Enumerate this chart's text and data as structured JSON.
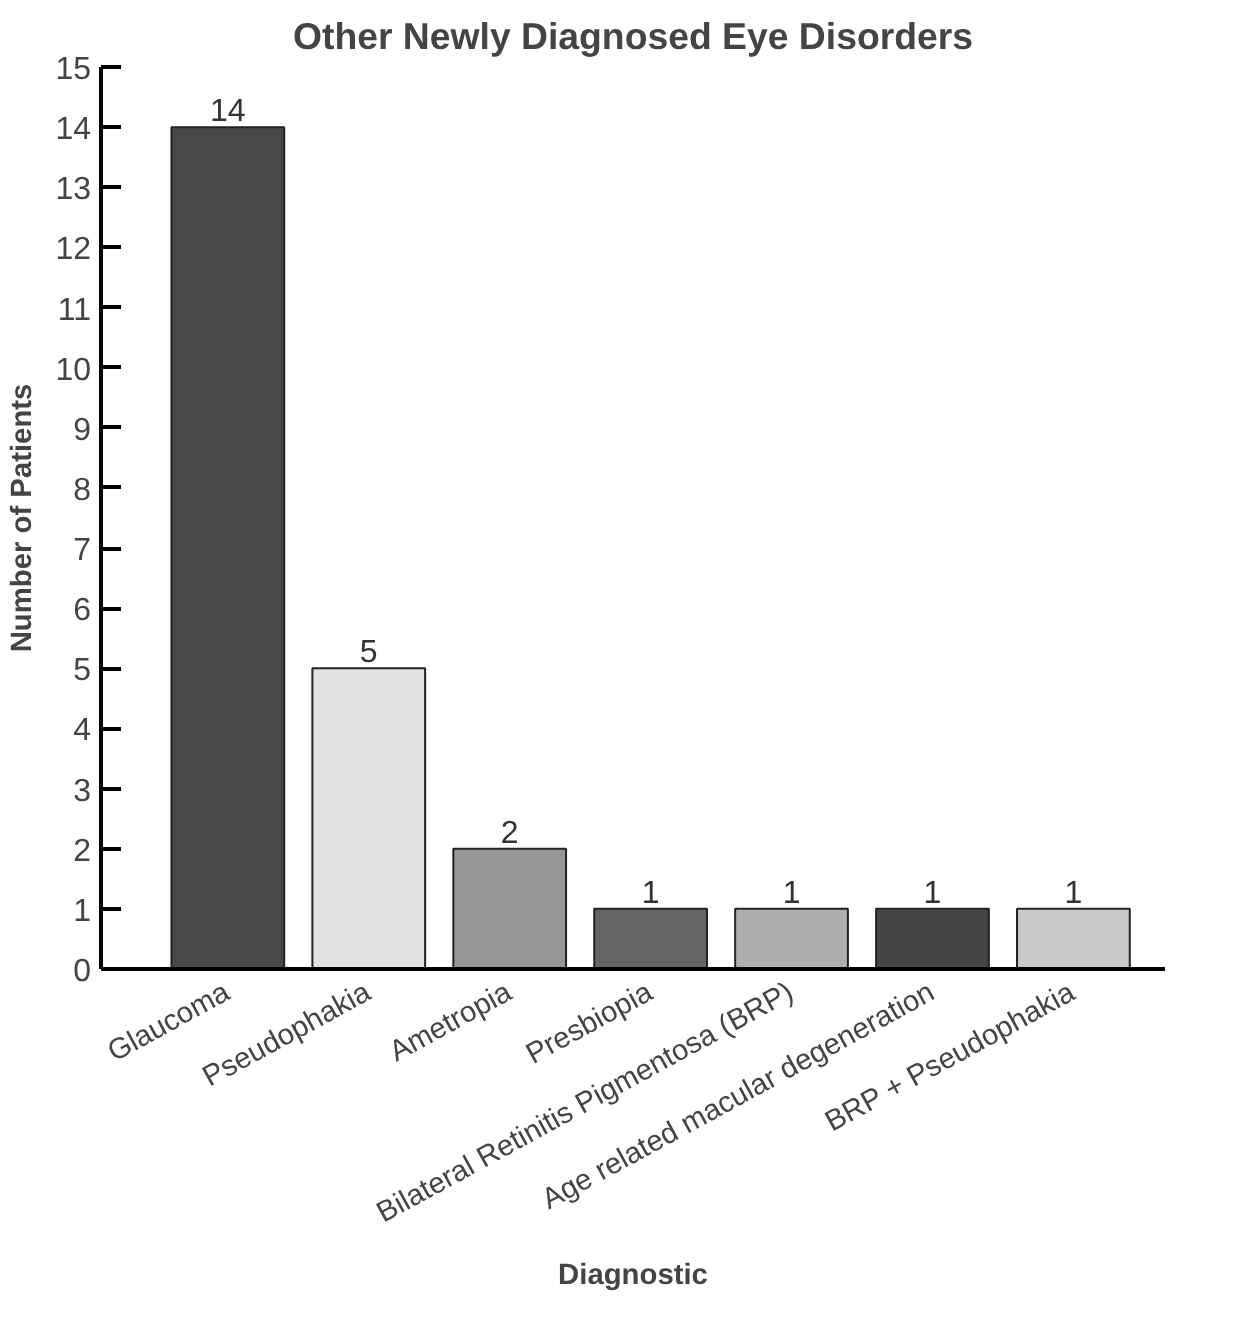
{
  "chart_data": {
    "type": "bar",
    "title": "Other Newly Diagnosed Eye Disorders",
    "xlabel": "Diagnostic",
    "ylabel": "Number of Patients",
    "categories": [
      "Glaucoma",
      "Pseudophakia",
      "Ametropia",
      "Presbiopia",
      "Bilateral Retinitis Pigmentosa (BRP)",
      "Age related macular degeneration",
      "BRP + Pseudophakia"
    ],
    "values": [
      14,
      5,
      2,
      1,
      1,
      1,
      1
    ],
    "colors": [
      "#47484a",
      "#e1e2e3",
      "#959698",
      "#646566",
      "#adaeb0",
      "#444547",
      "#c8c9ca"
    ],
    "ylim": [
      0,
      15
    ],
    "yticks": [
      0,
      1,
      2,
      3,
      4,
      5,
      6,
      7,
      8,
      9,
      10,
      11,
      12,
      13,
      14,
      15
    ],
    "data_labels": true,
    "grid": false
  }
}
